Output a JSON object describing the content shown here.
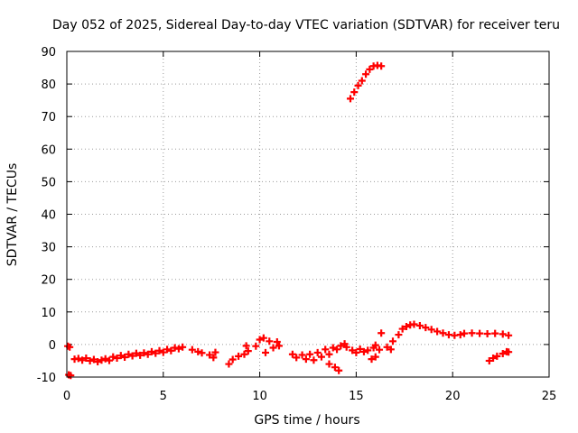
{
  "chart_data": {
    "type": "scatter",
    "title": "Day 052 of 2025, Sidereal Day-to-day VTEC variation (SDTVAR) for receiver teru",
    "xlabel": "GPS time / hours",
    "ylabel": "SDTVAR / TECUs",
    "xlim": [
      0,
      25
    ],
    "ylim": [
      -10,
      90
    ],
    "xticks": [
      0,
      5,
      10,
      15,
      20,
      25
    ],
    "yticks": [
      -10,
      0,
      10,
      20,
      30,
      40,
      50,
      60,
      70,
      80,
      90
    ],
    "grid": true,
    "marker": "+",
    "color": "#ff0000",
    "series": [
      {
        "name": "SDTVAR",
        "points": [
          [
            0.05,
            -0.5
          ],
          [
            0.15,
            -0.8
          ],
          [
            0.2,
            -9.5
          ],
          [
            0.1,
            -9.3
          ],
          [
            0.4,
            -4.5
          ],
          [
            0.6,
            -4.3
          ],
          [
            0.8,
            -4.8
          ],
          [
            1.0,
            -4.2
          ],
          [
            1.2,
            -5.0
          ],
          [
            1.4,
            -4.6
          ],
          [
            1.6,
            -5.3
          ],
          [
            1.8,
            -4.8
          ],
          [
            2.0,
            -4.4
          ],
          [
            2.2,
            -4.9
          ],
          [
            2.4,
            -3.8
          ],
          [
            2.6,
            -4.2
          ],
          [
            2.8,
            -3.4
          ],
          [
            3.0,
            -3.9
          ],
          [
            3.2,
            -3.0
          ],
          [
            3.4,
            -3.5
          ],
          [
            3.6,
            -2.7
          ],
          [
            3.8,
            -3.3
          ],
          [
            4.0,
            -2.6
          ],
          [
            4.2,
            -3.0
          ],
          [
            4.4,
            -2.2
          ],
          [
            4.6,
            -2.7
          ],
          [
            4.8,
            -1.9
          ],
          [
            5.0,
            -2.4
          ],
          [
            5.2,
            -1.5
          ],
          [
            5.4,
            -1.9
          ],
          [
            5.6,
            -1.0
          ],
          [
            5.8,
            -1.3
          ],
          [
            6.0,
            -0.8
          ],
          [
            6.5,
            -1.6
          ],
          [
            6.8,
            -2.2
          ],
          [
            7.0,
            -2.6
          ],
          [
            7.4,
            -3.2
          ],
          [
            7.6,
            -4.0
          ],
          [
            7.7,
            -2.4
          ],
          [
            8.4,
            -6.0
          ],
          [
            8.6,
            -4.6
          ],
          [
            8.9,
            -3.6
          ],
          [
            9.2,
            -3.0
          ],
          [
            9.4,
            -2.0
          ],
          [
            9.3,
            -0.4
          ],
          [
            9.8,
            -0.5
          ],
          [
            10.0,
            1.5
          ],
          [
            10.2,
            2.0
          ],
          [
            10.3,
            -2.5
          ],
          [
            10.5,
            1.0
          ],
          [
            10.7,
            -1.0
          ],
          [
            10.9,
            0.8
          ],
          [
            11.0,
            -0.4
          ],
          [
            11.7,
            -3.0
          ],
          [
            11.9,
            -4.0
          ],
          [
            12.2,
            -3.2
          ],
          [
            12.4,
            -4.5
          ],
          [
            12.6,
            -3.0
          ],
          [
            12.8,
            -4.8
          ],
          [
            13.0,
            -2.5
          ],
          [
            13.2,
            -3.8
          ],
          [
            13.4,
            -1.5
          ],
          [
            13.6,
            -3.0
          ],
          [
            13.8,
            -1.0
          ],
          [
            14.0,
            -1.5
          ],
          [
            14.2,
            -0.4
          ],
          [
            14.4,
            0.2
          ],
          [
            14.5,
            -0.8
          ],
          [
            13.6,
            -6.0
          ],
          [
            13.9,
            -7.0
          ],
          [
            14.1,
            -8.0
          ],
          [
            14.8,
            -1.8
          ],
          [
            15.0,
            -2.5
          ],
          [
            15.2,
            -1.4
          ],
          [
            15.4,
            -2.2
          ],
          [
            15.6,
            -1.8
          ],
          [
            15.8,
            -4.5
          ],
          [
            15.9,
            -1.0
          ],
          [
            16.0,
            -0.2
          ],
          [
            16.2,
            -1.6
          ],
          [
            16.0,
            -3.8
          ],
          [
            16.6,
            -0.8
          ],
          [
            16.9,
            1.0
          ],
          [
            17.2,
            3.0
          ],
          [
            16.3,
            3.5
          ],
          [
            16.8,
            -1.5
          ],
          [
            17.4,
            4.8
          ],
          [
            17.6,
            5.5
          ],
          [
            17.8,
            6.0
          ],
          [
            18.0,
            6.2
          ],
          [
            18.3,
            5.8
          ],
          [
            18.6,
            5.2
          ],
          [
            18.9,
            4.6
          ],
          [
            19.2,
            4.0
          ],
          [
            19.5,
            3.5
          ],
          [
            19.8,
            3.0
          ],
          [
            20.1,
            2.8
          ],
          [
            20.4,
            3.0
          ],
          [
            20.6,
            3.4
          ],
          [
            21.0,
            3.5
          ],
          [
            21.4,
            3.4
          ],
          [
            21.8,
            3.3
          ],
          [
            22.2,
            3.4
          ],
          [
            22.6,
            3.2
          ],
          [
            22.9,
            2.8
          ],
          [
            21.9,
            -5.0
          ],
          [
            22.1,
            -4.2
          ],
          [
            22.3,
            -3.6
          ],
          [
            22.6,
            -2.8
          ],
          [
            22.8,
            -2.2
          ],
          [
            22.9,
            -2.3
          ],
          [
            14.7,
            75.5
          ],
          [
            14.9,
            77.5
          ],
          [
            15.1,
            79.5
          ],
          [
            15.3,
            81.0
          ],
          [
            15.5,
            83.0
          ],
          [
            15.7,
            84.5
          ],
          [
            15.9,
            85.5
          ],
          [
            16.1,
            85.7
          ],
          [
            16.3,
            85.5
          ]
        ]
      }
    ]
  }
}
